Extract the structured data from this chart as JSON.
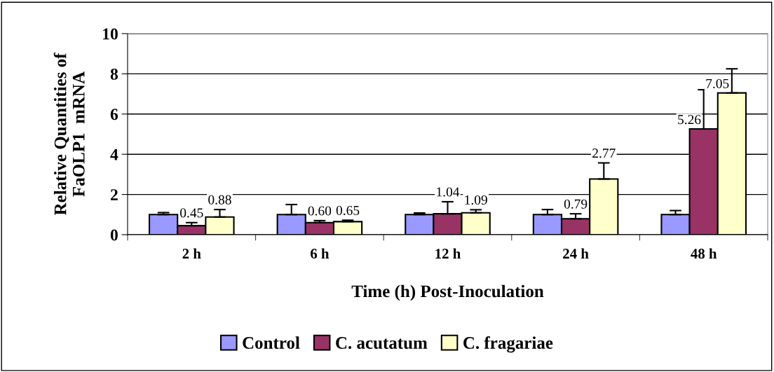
{
  "chart_data": {
    "type": "bar",
    "xlabel": "Time (h) Post-Inoculation",
    "ylabel": "Relative Quantities of\nFaOLP1  mRNA",
    "categories": [
      "2 h",
      "6 h",
      "12 h",
      "24 h",
      "48 h"
    ],
    "series": [
      {
        "name": "Control",
        "color": "#9999ff",
        "values": [
          1.0,
          1.0,
          1.0,
          1.0,
          1.0
        ],
        "errors": [
          0.1,
          0.5,
          0.08,
          0.25,
          0.2
        ]
      },
      {
        "name": "C. acutatum",
        "color": "#993366",
        "values": [
          0.45,
          0.6,
          1.04,
          0.79,
          5.26
        ],
        "errors": [
          0.15,
          0.1,
          0.6,
          0.25,
          1.95
        ],
        "value_labels": [
          "0.45",
          "0.60",
          "1.04",
          "0.79",
          "5.26"
        ]
      },
      {
        "name": "C. fragariae",
        "color": "#ffffcc",
        "values": [
          0.88,
          0.65,
          1.09,
          2.77,
          7.05
        ],
        "errors": [
          0.37,
          0.07,
          0.15,
          0.8,
          1.2
        ],
        "value_labels": [
          "0.88",
          "0.65",
          "1.09",
          "2.77",
          "7.05"
        ]
      }
    ],
    "ylim": [
      0,
      10
    ],
    "yticks": [
      0,
      2,
      4,
      6,
      8,
      10
    ],
    "grid": "y",
    "legend": "bottom"
  }
}
